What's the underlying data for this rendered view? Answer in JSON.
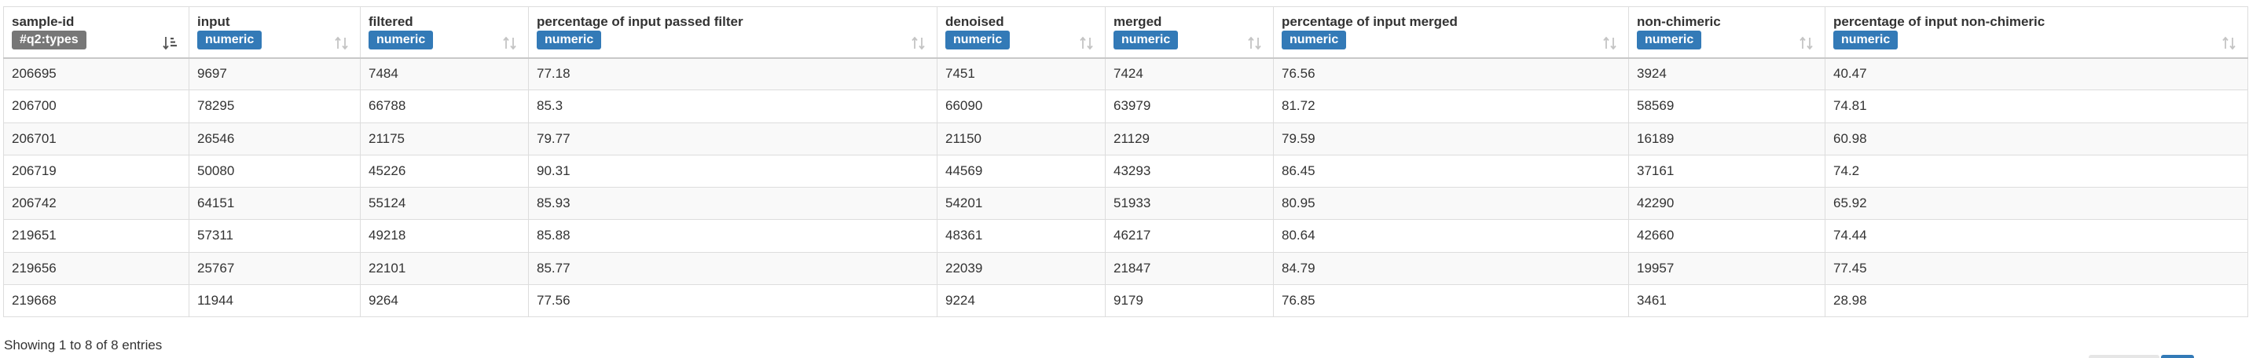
{
  "table": {
    "columns": [
      {
        "title": "sample-id",
        "type": "#q2:types",
        "type_color": "#777777",
        "sorted": true
      },
      {
        "title": "input",
        "type": "numeric",
        "type_color": "#337ab7",
        "sorted": false
      },
      {
        "title": "filtered",
        "type": "numeric",
        "type_color": "#337ab7",
        "sorted": false
      },
      {
        "title": "percentage of input passed filter",
        "type": "numeric",
        "type_color": "#337ab7",
        "sorted": false
      },
      {
        "title": "denoised",
        "type": "numeric",
        "type_color": "#337ab7",
        "sorted": false
      },
      {
        "title": "merged",
        "type": "numeric",
        "type_color": "#337ab7",
        "sorted": false
      },
      {
        "title": "percentage of input merged",
        "type": "numeric",
        "type_color": "#337ab7",
        "sorted": false
      },
      {
        "title": "non-chimeric",
        "type": "numeric",
        "type_color": "#337ab7",
        "sorted": false
      },
      {
        "title": "percentage of input non-chimeric",
        "type": "numeric",
        "type_color": "#337ab7",
        "sorted": false
      }
    ],
    "rows": [
      [
        "206695",
        "9697",
        "7484",
        "77.18",
        "7451",
        "7424",
        "76.56",
        "3924",
        "40.47"
      ],
      [
        "206700",
        "78295",
        "66788",
        "85.3",
        "66090",
        "63979",
        "81.72",
        "58569",
        "74.81"
      ],
      [
        "206701",
        "26546",
        "21175",
        "79.77",
        "21150",
        "21129",
        "79.59",
        "16189",
        "60.98"
      ],
      [
        "206719",
        "50080",
        "45226",
        "90.31",
        "44569",
        "43293",
        "86.45",
        "37161",
        "74.2"
      ],
      [
        "206742",
        "64151",
        "55124",
        "85.93",
        "54201",
        "51933",
        "80.95",
        "42290",
        "65.92"
      ],
      [
        "219651",
        "57311",
        "49218",
        "85.88",
        "48361",
        "46217",
        "80.64",
        "42660",
        "74.44"
      ],
      [
        "219656",
        "25767",
        "22101",
        "85.77",
        "22039",
        "21847",
        "84.79",
        "19957",
        "77.45"
      ],
      [
        "219668",
        "11944",
        "9264",
        "77.56",
        "9224",
        "9179",
        "76.85",
        "3461",
        "28.98"
      ]
    ]
  },
  "info_text": "Showing 1 to 8 of 8 entries"
}
